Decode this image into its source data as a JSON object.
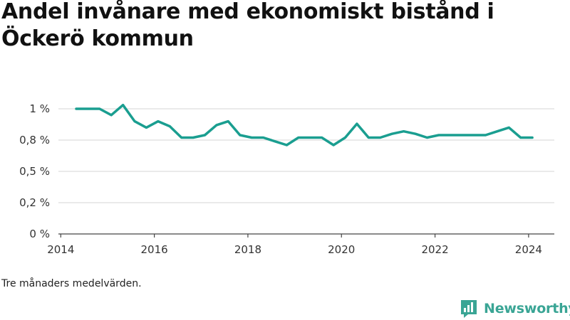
{
  "header": {
    "title": "Andel invånare med ekonomiskt bistånd i Öckerö kommun"
  },
  "caption": "Tre månaders medelvärden.",
  "brand": {
    "name": "Newsworthy",
    "icon": "newsworthy-logo-icon",
    "color": "#3aa595"
  },
  "chart_data": {
    "type": "line",
    "title": "Andel invånare med ekonomiskt bistånd i Öckerö kommun",
    "xlabel": "",
    "ylabel": "",
    "xlim": [
      2013.95,
      2024.55
    ],
    "ylim": [
      0,
      1.0
    ],
    "grid": true,
    "line_color": "#1a9e90",
    "grid_color": "#dddddd",
    "y_ticks": [
      {
        "value": 0,
        "label": "0 %"
      },
      {
        "value": 0.25,
        "label": "0,2 %"
      },
      {
        "value": 0.5,
        "label": "0,5 %"
      },
      {
        "value": 0.75,
        "label": "0,8 %"
      },
      {
        "value": 1.0,
        "label": "1 %"
      }
    ],
    "x_ticks": [
      {
        "value": 2014,
        "label": "2014"
      },
      {
        "value": 2016,
        "label": "2016"
      },
      {
        "value": 2018,
        "label": "2018"
      },
      {
        "value": 2020,
        "label": "2020"
      },
      {
        "value": 2022,
        "label": "2022"
      },
      {
        "value": 2024,
        "label": "2024"
      }
    ],
    "x": [
      2014.33,
      2014.58,
      2014.83,
      2015.08,
      2015.33,
      2015.58,
      2015.83,
      2016.08,
      2016.33,
      2016.58,
      2016.83,
      2017.08,
      2017.33,
      2017.58,
      2017.83,
      2018.08,
      2018.33,
      2018.58,
      2018.83,
      2019.08,
      2019.33,
      2019.58,
      2019.83,
      2020.08,
      2020.33,
      2020.58,
      2020.83,
      2021.08,
      2021.33,
      2021.58,
      2021.83,
      2022.08,
      2022.33,
      2022.58,
      2022.83,
      2023.08,
      2023.33,
      2023.58,
      2023.83,
      2024.08
    ],
    "series": [
      {
        "values": [
          1.0,
          1.0,
          1.0,
          0.95,
          1.03,
          0.9,
          0.85,
          0.9,
          0.86,
          0.77,
          0.77,
          0.79,
          0.87,
          0.9,
          0.79,
          0.77,
          0.77,
          0.74,
          0.71,
          0.77,
          0.77,
          0.77,
          0.71,
          0.77,
          0.88,
          0.77,
          0.77,
          0.8,
          0.82,
          0.8,
          0.77,
          0.79,
          0.79,
          0.79,
          0.79,
          0.79,
          0.82,
          0.85,
          0.77,
          0.77
        ]
      }
    ]
  }
}
